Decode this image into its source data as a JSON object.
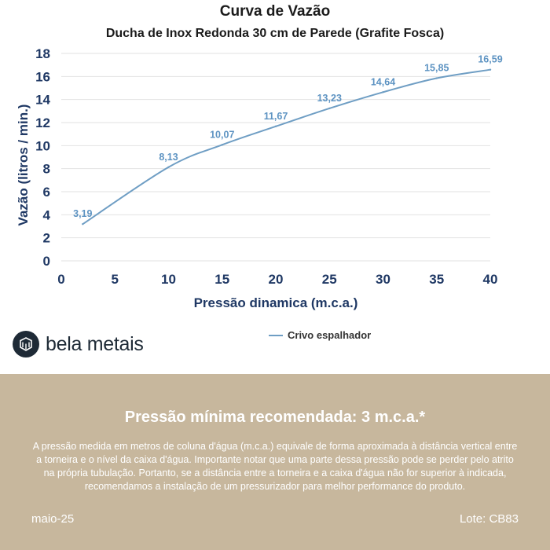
{
  "chart_data": {
    "type": "line",
    "title": "Curva de Vazão",
    "subtitle": "Ducha de Inox Redonda 30 cm de Parede (Grafite Fosca)",
    "xlabel": "Pressão dinamica (m.c.a.)",
    "ylabel": "Vazão (litros / min.)",
    "xlim": [
      0,
      40
    ],
    "ylim": [
      0,
      18
    ],
    "x_ticks": [
      "0",
      "5",
      "10",
      "15",
      "20",
      "25",
      "30",
      "35",
      "40"
    ],
    "y_ticks": [
      "0",
      "2",
      "4",
      "6",
      "8",
      "10",
      "12",
      "14",
      "16",
      "18"
    ],
    "grid": true,
    "legend_position": "bottom",
    "series": [
      {
        "name": "Crivo espalhador",
        "color": "#6f9ec4",
        "x": [
          2,
          10,
          15,
          20,
          25,
          30,
          35,
          40
        ],
        "y": [
          3.19,
          8.13,
          10.07,
          11.67,
          13.23,
          14.64,
          15.85,
          16.59
        ],
        "labels": [
          "3,19",
          "8,13",
          "10,07",
          "11,67",
          "13,23",
          "14,64",
          "15,85",
          "16,59"
        ]
      }
    ]
  },
  "brand": {
    "name": "bela metais",
    "icon": "cube-icon",
    "color": "#1e2a36"
  },
  "footer": {
    "heading": "Pressão mínima recomendada: 3 m.c.a.*",
    "body": "A pressão medida em metros de coluna d'água (m.c.a.) equivale de forma aproximada à distância vertical entre a torneira e o nível da caixa d'água. Importante notar que uma parte dessa pressão pode se perder pelo atrito na própria tubulação. Portanto, se a distância entre a torneira e a caixa d'água não for superior à indicada, recomendamos a instalação de um pressurizador para melhor performance do produto.",
    "date": "maio-25",
    "lot": "Lote: CB83",
    "background": "#c7b79d"
  }
}
